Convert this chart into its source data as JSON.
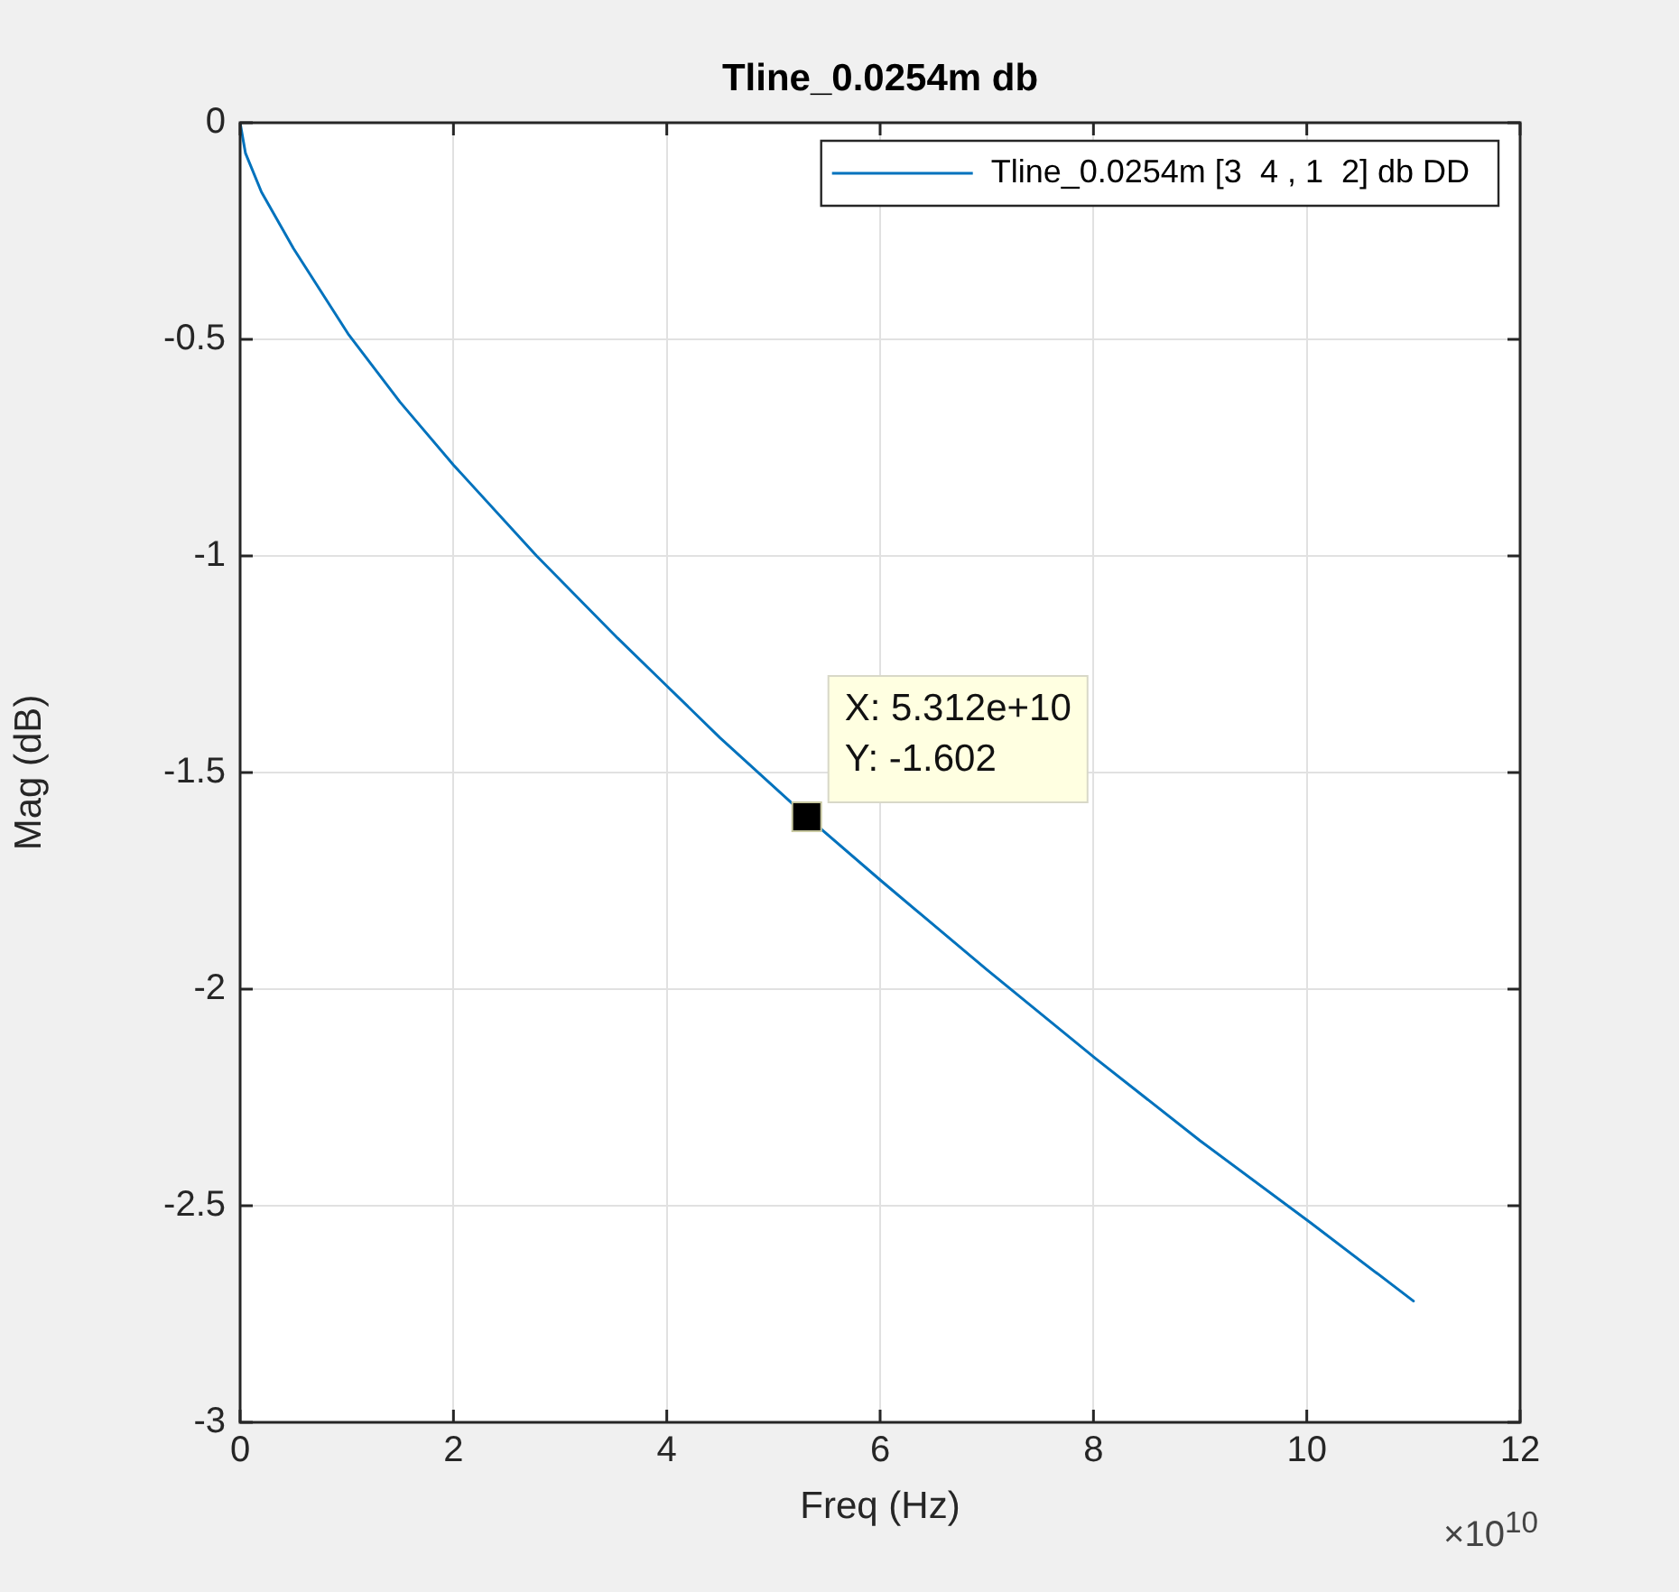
{
  "chart_data": {
    "type": "line",
    "title": "Tline_0.0254m db",
    "xlabel": "Freq (Hz)",
    "ylabel": "Mag (dB)",
    "xlim": [
      0,
      12
    ],
    "xticks": [
      0,
      2,
      4,
      6,
      8,
      10,
      12
    ],
    "ylim": [
      -3,
      0
    ],
    "yticks": [
      -3,
      -2.5,
      -2,
      -1.5,
      -1,
      -0.5,
      0
    ],
    "grid": true,
    "legend": "top right",
    "marker": "none",
    "line_style": "solid",
    "x": [
      0,
      0.05,
      0.2,
      0.5,
      1.02,
      1.5,
      2.0,
      2.78,
      3.54,
      4.0,
      4.5,
      5.312,
      6.01,
      7.0,
      8.02,
      9.0,
      10.04,
      11.0
    ],
    "series": [
      {
        "name": "Tline_0.0254m [3  4 , 1  2] db DD",
        "color": "#0072bd",
        "values": [
          0,
          -0.07,
          -0.16,
          -0.29,
          -0.49,
          -0.645,
          -0.79,
          -1.0,
          -1.19,
          -1.3,
          -1.42,
          -1.602,
          -1.75,
          -1.955,
          -2.16,
          -2.35,
          -2.54,
          -2.72
        ]
      }
    ],
    "annotations": [
      {
        "text": "X: 5.312e+10\nY: -1.602",
        "x": 5.312,
        "y": -1.602
      },
      "×10$^{10}$"
    ]
  }
}
